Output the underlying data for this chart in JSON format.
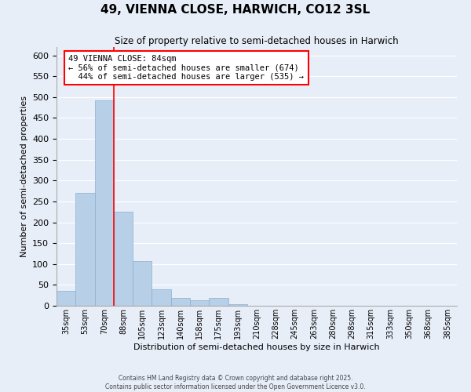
{
  "title": "49, VIENNA CLOSE, HARWICH, CO12 3SL",
  "subtitle": "Size of property relative to semi-detached houses in Harwich",
  "xlabel": "Distribution of semi-detached houses by size in Harwich",
  "ylabel": "Number of semi-detached properties",
  "bar_color": "#b8cfe8",
  "bar_edge_color": "#8aafd0",
  "background_color": "#e8eef8",
  "grid_color": "#d0d8e8",
  "bin_labels": [
    "35sqm",
    "53sqm",
    "70sqm",
    "88sqm",
    "105sqm",
    "123sqm",
    "140sqm",
    "158sqm",
    "175sqm",
    "193sqm",
    "210sqm",
    "228sqm",
    "245sqm",
    "263sqm",
    "280sqm",
    "298sqm",
    "315sqm",
    "333sqm",
    "350sqm",
    "368sqm",
    "385sqm"
  ],
  "bar_heights": [
    35,
    270,
    493,
    225,
    108,
    40,
    18,
    14,
    18,
    4,
    0,
    0,
    0,
    0,
    0,
    0,
    0,
    0,
    0,
    0,
    0
  ],
  "property_line_label": "49 VIENNA CLOSE: 84sqm",
  "pct_smaller": 56,
  "count_smaller": 674,
  "pct_larger": 44,
  "count_larger": 535,
  "ylim": [
    0,
    620
  ],
  "yticks": [
    0,
    50,
    100,
    150,
    200,
    250,
    300,
    350,
    400,
    450,
    500,
    550,
    600
  ],
  "footer1": "Contains HM Land Registry data © Crown copyright and database right 2025.",
  "footer2": "Contains public sector information licensed under the Open Government Licence v3.0."
}
